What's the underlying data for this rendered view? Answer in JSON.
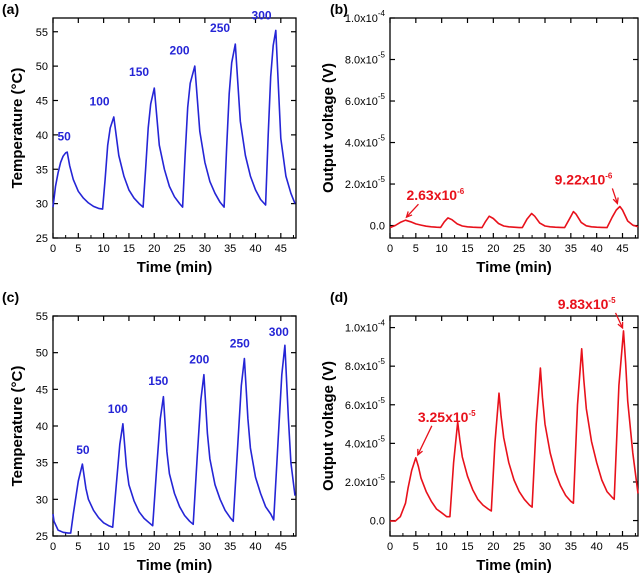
{
  "chart_data": [
    {
      "panel": "(a)",
      "type": "line",
      "color": "#2525d6",
      "xlabel": "Time (min)",
      "ylabel": "Temperature (°C)",
      "xlim": [
        0,
        48
      ],
      "ylim": [
        25,
        57
      ],
      "xticks": [
        0,
        5,
        10,
        15,
        20,
        25,
        30,
        35,
        40,
        45
      ],
      "yticks": [
        25,
        30,
        35,
        40,
        45,
        50,
        55
      ],
      "grid": false,
      "series": [
        {
          "x": [
            0,
            0.5,
            1,
            1.5,
            2,
            2.5,
            2.8,
            3.3,
            4,
            5,
            6,
            7,
            8,
            9,
            9.8,
            10.3,
            10.8,
            11.3,
            12,
            13,
            14,
            15,
            16,
            17,
            17.8,
            18.3,
            18.8,
            19.3,
            20,
            21,
            22,
            23,
            24,
            25,
            25.6,
            26.1,
            26.6,
            27.1,
            28,
            29,
            30,
            31,
            32,
            33,
            33.8,
            34.3,
            34.8,
            35.3,
            36,
            37,
            38,
            39,
            40,
            41,
            42,
            42.5,
            43,
            43.5,
            44,
            45,
            46,
            47,
            47.8
          ],
          "y": [
            29.5,
            32.5,
            34.5,
            36.0,
            36.9,
            37.4,
            37.5,
            35.5,
            33.5,
            31.8,
            30.8,
            30.1,
            29.6,
            29.3,
            29.2,
            33.5,
            38.5,
            41.0,
            42.6,
            37.0,
            34.0,
            32.0,
            30.8,
            30.0,
            29.5,
            35.0,
            41.0,
            44.5,
            46.8,
            38.5,
            35.0,
            32.5,
            31.0,
            30.0,
            29.5,
            37.0,
            44.0,
            47.5,
            50.0,
            40.5,
            36.0,
            33.2,
            31.5,
            30.2,
            29.5,
            38.0,
            46.0,
            50.5,
            53.2,
            42.0,
            37.0,
            34.0,
            32.0,
            30.6,
            29.8,
            40.0,
            48.5,
            53.0,
            55.2,
            39.5,
            34.0,
            31.5,
            30.0
          ]
        }
      ],
      "annotations": [
        {
          "text": "50",
          "x": 2.2,
          "y": 39.2
        },
        {
          "text": "100",
          "x": 9.2,
          "y": 44.3
        },
        {
          "text": "150",
          "x": 17.0,
          "y": 48.6
        },
        {
          "text": "200",
          "x": 25.0,
          "y": 51.7
        },
        {
          "text": "250",
          "x": 33.0,
          "y": 55.0
        },
        {
          "text": "300",
          "x": 41.2,
          "y": 56.8
        }
      ]
    },
    {
      "panel": "(b)",
      "type": "line",
      "color": "#e8111b",
      "xlabel": "Time (min)",
      "ylabel": "Output voltage (V)",
      "xlim": [
        0,
        48
      ],
      "ylim": [
        -6e-06,
        0.0001
      ],
      "xticks": [
        0,
        5,
        10,
        15,
        20,
        25,
        30,
        35,
        40,
        45
      ],
      "yticks": [
        0,
        2e-05,
        4e-05,
        6e-05,
        8e-05,
        0.0001
      ],
      "ytick_labels": [
        {
          "base": "0.0",
          "exp": ""
        },
        {
          "base": "2.0x10",
          "exp": "-5"
        },
        {
          "base": "4.0x10",
          "exp": "-5"
        },
        {
          "base": "6.0x10",
          "exp": "-5"
        },
        {
          "base": "8.0x10",
          "exp": "-5"
        },
        {
          "base": "1.0x10",
          "exp": "-4"
        }
      ],
      "grid": false,
      "series": [
        {
          "x": [
            0,
            1,
            2,
            3,
            4,
            5,
            6,
            7,
            8,
            9,
            9.8,
            10.5,
            11.2,
            12,
            13,
            14,
            15,
            16,
            17,
            17.8,
            18.5,
            19.2,
            20,
            21,
            22,
            23,
            24,
            25,
            25.6,
            26.5,
            27.4,
            28,
            29,
            30,
            31,
            32,
            33,
            33.8,
            34.8,
            35.5,
            36,
            37,
            38,
            39,
            40,
            41,
            42,
            43,
            43.8,
            44.5,
            45,
            46,
            47,
            48
          ],
          "y": [
            -1e-06,
            0.0,
            1.5e-06,
            2.6e-06,
            1.8e-06,
            8e-07,
            2e-07,
            -3e-07,
            -6e-07,
            -8e-07,
            -9e-07,
            1.8e-06,
            3.7e-06,
            2.8e-06,
            8e-07,
            -2e-07,
            -6e-07,
            -8e-07,
            -9e-07,
            -1e-06,
            2e-06,
            4.5e-06,
            3.4e-06,
            1e-06,
            -2e-07,
            -6e-07,
            -8e-07,
            -1e-06,
            -1e-06,
            3e-06,
            5.8e-06,
            4.5e-06,
            1.2e-06,
            -2e-07,
            -6e-07,
            -8e-07,
            -9e-07,
            -1e-06,
            3.5e-06,
            6.7e-06,
            5.5e-06,
            1.5e-06,
            -1e-07,
            -6e-07,
            -8e-07,
            -9e-07,
            -1e-06,
            4e-06,
            7.5e-06,
            9.2e-06,
            7.5e-06,
            2.2e-06,
            2e-07,
            -6e-07
          ]
        }
      ],
      "annotations": [
        {
          "base": "2.63x10",
          "exp": "-6",
          "x": 2.8,
          "y": 2.6e-06
        },
        {
          "base": "9.22x10",
          "exp": "-6",
          "x": 44.2,
          "y": 9.2e-06
        }
      ]
    },
    {
      "panel": "(c)",
      "type": "line",
      "color": "#2525d6",
      "xlabel": "Time (min)",
      "ylabel": "Temperature (°C)",
      "xlim": [
        0,
        48
      ],
      "ylim": [
        25,
        55
      ],
      "xticks": [
        0,
        5,
        10,
        15,
        20,
        25,
        30,
        35,
        40,
        45
      ],
      "yticks": [
        25,
        30,
        35,
        40,
        45,
        50,
        55
      ],
      "grid": false,
      "series": [
        {
          "x": [
            0,
            0.2,
            1,
            2,
            3,
            3.5,
            4,
            5,
            5.8,
            6.5,
            7,
            8,
            9,
            10,
            11,
            11.8,
            12.5,
            13.2,
            13.8,
            14.5,
            15,
            16,
            17,
            18,
            19,
            19.7,
            20.5,
            21.2,
            21.8,
            22.5,
            23,
            24,
            25,
            26,
            27,
            27.7,
            28.5,
            29.2,
            29.8,
            30.5,
            31,
            32,
            33,
            34,
            35,
            35.6,
            36.5,
            37.2,
            37.8,
            38.5,
            39,
            40,
            41,
            42,
            43,
            43.6,
            44.5,
            45.2,
            45.8,
            46.5,
            47,
            47.8
          ],
          "y": [
            28.0,
            27.0,
            25.8,
            25.5,
            25.4,
            25.4,
            28.0,
            32.5,
            34.8,
            31.5,
            30.0,
            28.5,
            27.5,
            26.8,
            26.4,
            26.2,
            32.0,
            37.5,
            40.3,
            34.5,
            32.0,
            29.8,
            28.3,
            27.4,
            26.8,
            26.4,
            34.5,
            41.0,
            44.0,
            36.5,
            33.5,
            30.8,
            29.0,
            27.8,
            27.0,
            26.6,
            36.0,
            43.5,
            47.0,
            39.0,
            35.5,
            32.0,
            30.0,
            28.5,
            27.5,
            27.0,
            37.5,
            45.5,
            49.2,
            41.0,
            37.0,
            33.0,
            30.8,
            29.0,
            28.0,
            27.2,
            38.5,
            47.0,
            51.0,
            41.0,
            35.0,
            30.5
          ]
        }
      ],
      "annotations": [
        {
          "text": "50",
          "x": 5.9,
          "y": 36.2
        },
        {
          "text": "100",
          "x": 12.8,
          "y": 41.8
        },
        {
          "text": "150",
          "x": 20.8,
          "y": 45.6
        },
        {
          "text": "200",
          "x": 28.9,
          "y": 48.5
        },
        {
          "text": "250",
          "x": 36.9,
          "y": 50.7
        },
        {
          "text": "300",
          "x": 44.6,
          "y": 52.3
        }
      ]
    },
    {
      "panel": "(d)",
      "type": "line",
      "color": "#e8111b",
      "xlabel": "Time (min)",
      "ylabel": "Output voltage (V)",
      "xlim": [
        0,
        48
      ],
      "ylim": [
        -8e-06,
        0.000106
      ],
      "xticks": [
        0,
        5,
        10,
        15,
        20,
        25,
        30,
        35,
        40,
        45
      ],
      "yticks": [
        0,
        2e-05,
        4e-05,
        6e-05,
        8e-05,
        0.0001
      ],
      "ytick_labels": [
        {
          "base": "0.0",
          "exp": ""
        },
        {
          "base": "2.0x10",
          "exp": "-5"
        },
        {
          "base": "4.0x10",
          "exp": "-5"
        },
        {
          "base": "6.0x10",
          "exp": "-5"
        },
        {
          "base": "8.0x10",
          "exp": "-5"
        },
        {
          "base": "1.0x10",
          "exp": "-4"
        }
      ],
      "grid": false,
      "series": [
        {
          "x": [
            0,
            1,
            2,
            3,
            3.5,
            4.2,
            5.0,
            5.5,
            6,
            7,
            8,
            9,
            10,
            11,
            11.6,
            12.3,
            13.1,
            13.5,
            14,
            15,
            16,
            17,
            18,
            19,
            19.6,
            20.3,
            21.1,
            21.5,
            22,
            23,
            24,
            25,
            26,
            27,
            27.5,
            28.3,
            29.1,
            29.5,
            30,
            31,
            32,
            33,
            34,
            35,
            35.5,
            36.3,
            37.1,
            37.5,
            38,
            39,
            40,
            41,
            42,
            43,
            43.4,
            44.3,
            45.2,
            45.6,
            46,
            47,
            48
          ],
          "y": [
            -2e-07,
            -3e-07,
            2e-06,
            9e-06,
            1.7e-05,
            2.6e-05,
            3.25e-05,
            2.8e-05,
            2.2e-05,
            1.5e-05,
            1e-05,
            6e-06,
            4e-06,
            2e-06,
            2e-06,
            3e-05,
            5.1e-05,
            4.2e-05,
            3.3e-05,
            2.3e-05,
            1.6e-05,
            1.1e-05,
            8e-06,
            6e-06,
            5e-06,
            4e-05,
            6.6e-05,
            5.4e-05,
            4.3e-05,
            3e-05,
            2.1e-05,
            1.5e-05,
            1.1e-05,
            8e-06,
            7e-06,
            5e-05,
            7.9e-05,
            6.4e-05,
            5e-05,
            3.5e-05,
            2.5e-05,
            1.8e-05,
            1.3e-05,
            1e-05,
            9e-06,
            6e-05,
            8.9e-05,
            7.3e-05,
            5.8e-05,
            4.1e-05,
            3e-05,
            2.1e-05,
            1.5e-05,
            1.2e-05,
            1.1e-05,
            7e-05,
            9.83e-05,
            8.2e-05,
            6.2e-05,
            3.5e-05,
            1.4e-05
          ]
        }
      ],
      "annotations": [
        {
          "base": "3.25x10",
          "exp": "-5",
          "x": 5.0,
          "y": 3.25e-05
        },
        {
          "base": "9.83x10",
          "exp": "-5",
          "x": 45.2,
          "y": 9.83e-05
        }
      ]
    }
  ]
}
